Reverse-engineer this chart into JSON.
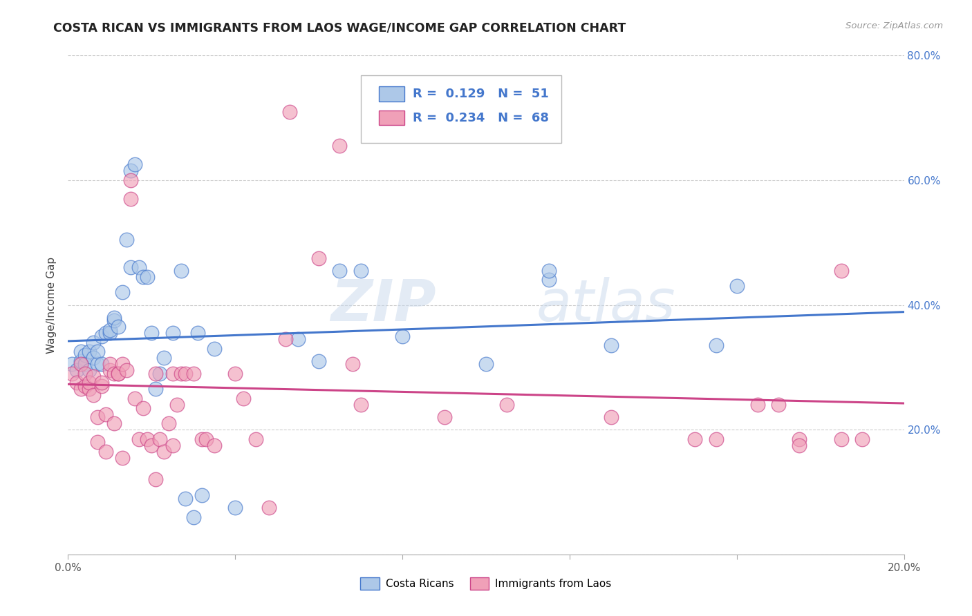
{
  "title": "COSTA RICAN VS IMMIGRANTS FROM LAOS WAGE/INCOME GAP CORRELATION CHART",
  "source": "Source: ZipAtlas.com",
  "ylabel": "Wage/Income Gap",
  "x_min": 0.0,
  "x_max": 0.2,
  "y_min": 0.0,
  "y_max": 0.8,
  "x_ticks": [
    0.0,
    0.04,
    0.08,
    0.12,
    0.16,
    0.2
  ],
  "y_ticks": [
    0.0,
    0.2,
    0.4,
    0.6,
    0.8
  ],
  "right_y_labels": [
    "",
    "20.0%",
    "40.0%",
    "60.0%",
    "80.0%"
  ],
  "blue_color": "#adc8e8",
  "blue_line_color": "#4477cc",
  "pink_color": "#f0a0b8",
  "pink_line_color": "#cc4488",
  "blue_R": "0.129",
  "blue_N": "51",
  "pink_R": "0.234",
  "pink_N": "68",
  "watermark_zip": "ZIP",
  "watermark_atlas": "atlas",
  "legend_label_blue": "Costa Ricans",
  "legend_label_pink": "Immigrants from Laos",
  "blue_points": [
    [
      0.001,
      0.305
    ],
    [
      0.002,
      0.295
    ],
    [
      0.003,
      0.31
    ],
    [
      0.003,
      0.325
    ],
    [
      0.004,
      0.32
    ],
    [
      0.004,
      0.305
    ],
    [
      0.005,
      0.325
    ],
    [
      0.005,
      0.295
    ],
    [
      0.006,
      0.34
    ],
    [
      0.006,
      0.315
    ],
    [
      0.007,
      0.305
    ],
    [
      0.007,
      0.325
    ],
    [
      0.008,
      0.305
    ],
    [
      0.008,
      0.35
    ],
    [
      0.009,
      0.355
    ],
    [
      0.01,
      0.355
    ],
    [
      0.01,
      0.36
    ],
    [
      0.011,
      0.375
    ],
    [
      0.011,
      0.38
    ],
    [
      0.012,
      0.365
    ],
    [
      0.013,
      0.42
    ],
    [
      0.014,
      0.505
    ],
    [
      0.015,
      0.46
    ],
    [
      0.015,
      0.615
    ],
    [
      0.016,
      0.625
    ],
    [
      0.017,
      0.46
    ],
    [
      0.018,
      0.445
    ],
    [
      0.019,
      0.445
    ],
    [
      0.02,
      0.355
    ],
    [
      0.021,
      0.265
    ],
    [
      0.022,
      0.29
    ],
    [
      0.023,
      0.315
    ],
    [
      0.025,
      0.355
    ],
    [
      0.027,
      0.455
    ],
    [
      0.028,
      0.09
    ],
    [
      0.03,
      0.06
    ],
    [
      0.031,
      0.355
    ],
    [
      0.032,
      0.095
    ],
    [
      0.035,
      0.33
    ],
    [
      0.04,
      0.075
    ],
    [
      0.055,
      0.345
    ],
    [
      0.06,
      0.31
    ],
    [
      0.065,
      0.455
    ],
    [
      0.07,
      0.455
    ],
    [
      0.08,
      0.35
    ],
    [
      0.1,
      0.305
    ],
    [
      0.115,
      0.44
    ],
    [
      0.115,
      0.455
    ],
    [
      0.13,
      0.335
    ],
    [
      0.155,
      0.335
    ],
    [
      0.16,
      0.43
    ]
  ],
  "pink_points": [
    [
      0.001,
      0.29
    ],
    [
      0.002,
      0.275
    ],
    [
      0.003,
      0.265
    ],
    [
      0.003,
      0.305
    ],
    [
      0.004,
      0.27
    ],
    [
      0.004,
      0.29
    ],
    [
      0.005,
      0.265
    ],
    [
      0.005,
      0.275
    ],
    [
      0.006,
      0.255
    ],
    [
      0.006,
      0.285
    ],
    [
      0.007,
      0.22
    ],
    [
      0.007,
      0.18
    ],
    [
      0.008,
      0.27
    ],
    [
      0.008,
      0.275
    ],
    [
      0.009,
      0.225
    ],
    [
      0.009,
      0.165
    ],
    [
      0.01,
      0.295
    ],
    [
      0.01,
      0.305
    ],
    [
      0.011,
      0.29
    ],
    [
      0.011,
      0.21
    ],
    [
      0.012,
      0.29
    ],
    [
      0.012,
      0.29
    ],
    [
      0.013,
      0.155
    ],
    [
      0.013,
      0.305
    ],
    [
      0.014,
      0.295
    ],
    [
      0.015,
      0.57
    ],
    [
      0.015,
      0.6
    ],
    [
      0.016,
      0.25
    ],
    [
      0.017,
      0.185
    ],
    [
      0.018,
      0.235
    ],
    [
      0.019,
      0.185
    ],
    [
      0.02,
      0.175
    ],
    [
      0.021,
      0.29
    ],
    [
      0.021,
      0.12
    ],
    [
      0.022,
      0.185
    ],
    [
      0.023,
      0.165
    ],
    [
      0.024,
      0.21
    ],
    [
      0.025,
      0.29
    ],
    [
      0.025,
      0.175
    ],
    [
      0.026,
      0.24
    ],
    [
      0.027,
      0.29
    ],
    [
      0.028,
      0.29
    ],
    [
      0.03,
      0.29
    ],
    [
      0.032,
      0.185
    ],
    [
      0.033,
      0.185
    ],
    [
      0.035,
      0.175
    ],
    [
      0.04,
      0.29
    ],
    [
      0.042,
      0.25
    ],
    [
      0.045,
      0.185
    ],
    [
      0.048,
      0.075
    ],
    [
      0.052,
      0.345
    ],
    [
      0.053,
      0.71
    ],
    [
      0.06,
      0.475
    ],
    [
      0.065,
      0.655
    ],
    [
      0.068,
      0.305
    ],
    [
      0.07,
      0.24
    ],
    [
      0.09,
      0.22
    ],
    [
      0.105,
      0.24
    ],
    [
      0.13,
      0.22
    ],
    [
      0.15,
      0.185
    ],
    [
      0.155,
      0.185
    ],
    [
      0.165,
      0.24
    ],
    [
      0.17,
      0.24
    ],
    [
      0.175,
      0.185
    ],
    [
      0.175,
      0.175
    ],
    [
      0.185,
      0.185
    ],
    [
      0.185,
      0.455
    ],
    [
      0.19,
      0.185
    ]
  ]
}
